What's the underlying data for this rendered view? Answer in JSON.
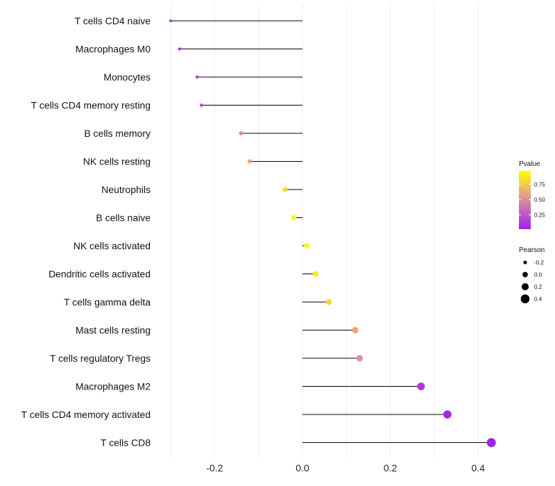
{
  "chart_data": {
    "type": "lollipop",
    "xlabel": "",
    "ylabel": "",
    "xlim": [
      -0.3,
      0.43
    ],
    "xticks": [
      -0.2,
      0.0,
      0.2,
      0.4
    ],
    "xtick_labels": [
      "-0.2",
      "0.0",
      "0.2",
      "0.4"
    ],
    "grid": true,
    "categories": [
      "T cells CD4 naive",
      "Macrophages M0",
      "Monocytes",
      "T cells CD4 memory resting",
      "B cells memory",
      "NK cells resting",
      "Neutrophils",
      "B cells naive",
      "NK cells activated",
      "Dendritic cells activated",
      "T cells gamma delta",
      "Mast cells resting",
      "T cells regulatory  Tregs",
      "Macrophages M2",
      "T cells CD4 memory activated",
      "T cells CD8"
    ],
    "pearson": [
      -0.3,
      -0.28,
      -0.24,
      -0.23,
      -0.14,
      -0.12,
      -0.04,
      -0.02,
      0.01,
      0.03,
      0.06,
      0.12,
      0.13,
      0.27,
      0.33,
      0.43
    ],
    "pvalue": [
      0.05,
      0.06,
      0.18,
      0.2,
      0.5,
      0.6,
      0.85,
      0.92,
      0.95,
      0.9,
      0.8,
      0.6,
      0.5,
      0.12,
      0.05,
      0.03
    ],
    "color_legend": {
      "title": "Pvalue",
      "ticks": [
        0.25,
        0.5,
        0.75
      ],
      "tick_labels": [
        "0.25",
        "0.50",
        "0.75"
      ],
      "low_color": "#a020f0",
      "high_color": "#ffff00",
      "range": [
        0.02,
        0.97
      ]
    },
    "size_legend": {
      "title": "Pearson",
      "values": [
        -0.2,
        0.0,
        0.2,
        0.4
      ],
      "labels": [
        "-0.2",
        "0.0",
        "0.2",
        "0.4"
      ]
    }
  }
}
